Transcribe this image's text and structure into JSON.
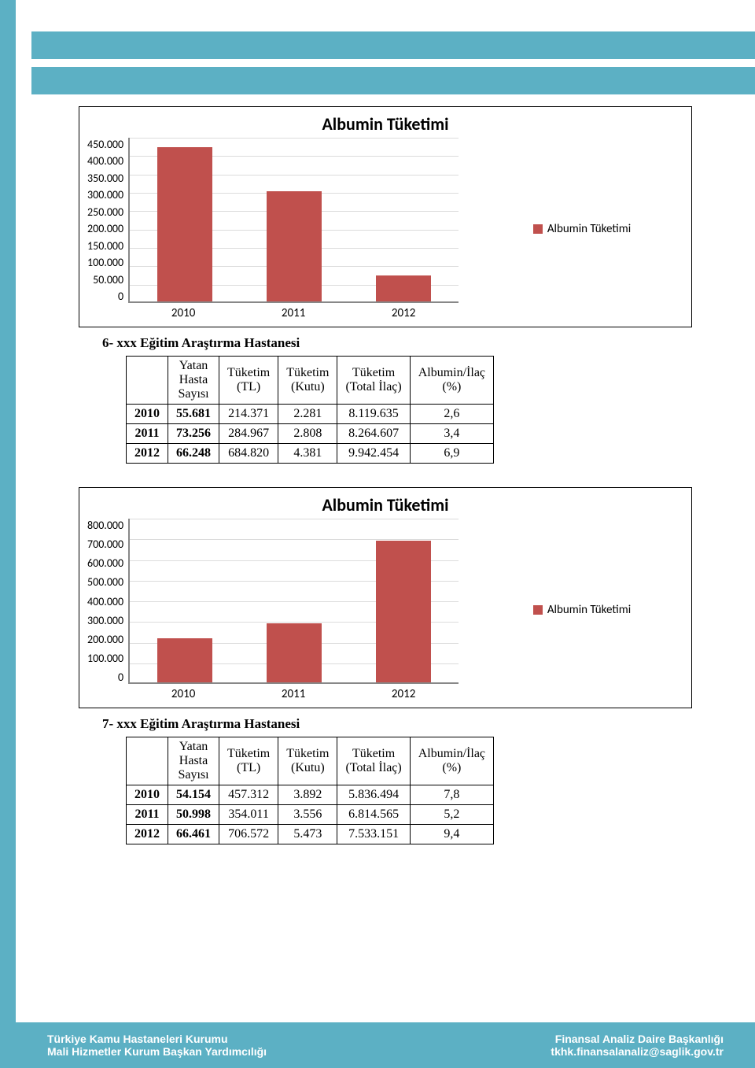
{
  "chart1": {
    "title": "Albumin Tüketimi",
    "legend": "Albumin Tüketimi",
    "bar_color": "#c0504d",
    "categories": [
      "2010",
      "2011",
      "2012"
    ],
    "values": [
      420000,
      300000,
      70000
    ],
    "ylim": [
      0,
      450000
    ],
    "yticks": [
      "450.000",
      "400.000",
      "350.000",
      "300.000",
      "250.000",
      "200.000",
      "150.000",
      "100.000",
      "50.000",
      "0"
    ],
    "ytick_values": [
      450000,
      400000,
      350000,
      300000,
      250000,
      200000,
      150000,
      100000,
      50000,
      0
    ]
  },
  "section6": {
    "heading": "6-  xxx Eğitim Araştırma Hastanesi",
    "columns": [
      "",
      "Yatan Hasta Sayısı",
      "Tüketim (TL)",
      "Tüketim (Kutu)",
      "Tüketim (Total İlaç)",
      "Albumin/İlaç (%)"
    ],
    "rows": [
      [
        "2010",
        "55.681",
        "214.371",
        "2.281",
        "8.119.635",
        "2,6"
      ],
      [
        "2011",
        "73.256",
        "284.967",
        "2.808",
        "8.264.607",
        "3,4"
      ],
      [
        "2012",
        "66.248",
        "684.820",
        "4.381",
        "9.942.454",
        "6,9"
      ]
    ]
  },
  "chart2": {
    "title": "Albumin Tüketimi",
    "legend": "Albumin Tüketimi",
    "bar_color": "#c0504d",
    "categories": [
      "2010",
      "2011",
      "2012"
    ],
    "values": [
      214371,
      284967,
      684820
    ],
    "ylim": [
      0,
      800000
    ],
    "yticks": [
      "800.000",
      "700.000",
      "600.000",
      "500.000",
      "400.000",
      "300.000",
      "200.000",
      "100.000",
      "0"
    ],
    "ytick_values": [
      800000,
      700000,
      600000,
      500000,
      400000,
      300000,
      200000,
      100000,
      0
    ]
  },
  "section7": {
    "heading": "7-  xxx Eğitim Araştırma Hastanesi",
    "columns": [
      "",
      "Yatan Hasta Sayısı",
      "Tüketim (TL)",
      "Tüketim (Kutu)",
      "Tüketim (Total İlaç)",
      "Albumin/İlaç (%)"
    ],
    "rows": [
      [
        "2010",
        "54.154",
        "457.312",
        "3.892",
        "5.836.494",
        "7,8"
      ],
      [
        "2011",
        "50.998",
        "354.011",
        "3.556",
        "6.814.565",
        "5,2"
      ],
      [
        "2012",
        "66.461",
        "706.572",
        "5.473",
        "7.533.151",
        "9,4"
      ]
    ]
  },
  "footer": {
    "left1": "Türkiye Kamu Hastaneleri Kurumu",
    "left2": "Mali Hizmetler Kurum Başkan Yardımcılığı",
    "right1": "Finansal Analiz Daire Başkanlığı",
    "right2": "tkhk.finansalanaliz@saglik.gov.tr"
  },
  "colors": {
    "band": "#5cb0c4",
    "bar": "#c0504d",
    "grid": "#dcdcdc"
  }
}
